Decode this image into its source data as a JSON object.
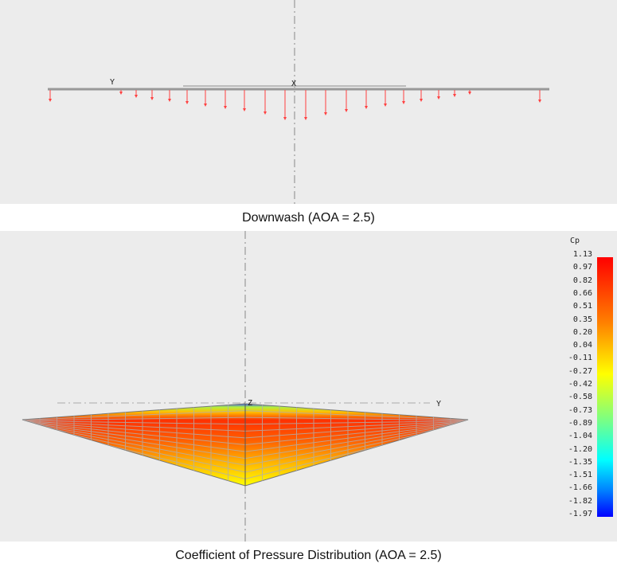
{
  "downwash": {
    "caption": "Downwash (AOA = 2.5)",
    "axis_y": "Y",
    "axis_x": "X"
  },
  "pressure": {
    "caption": "Coefficient of Pressure Distribution (AOA = 2.5)",
    "axis_y": "Y",
    "axis_z": "Z"
  },
  "legend": {
    "title": "Cp",
    "ticks": [
      "1.13",
      "0.97",
      "0.82",
      "0.66",
      "0.51",
      "0.35",
      "0.20",
      "0.04",
      "-0.11",
      "-0.27",
      "-0.42",
      "-0.58",
      "-0.73",
      "-0.89",
      "-1.04",
      "-1.20",
      "-1.35",
      "-1.51",
      "-1.66",
      "-1.82",
      "-1.97"
    ],
    "max": 1.13,
    "min": -1.97
  },
  "colors": {
    "arrow": "#ff4040",
    "background": "#ececec",
    "wing": "#a0a0a0"
  }
}
